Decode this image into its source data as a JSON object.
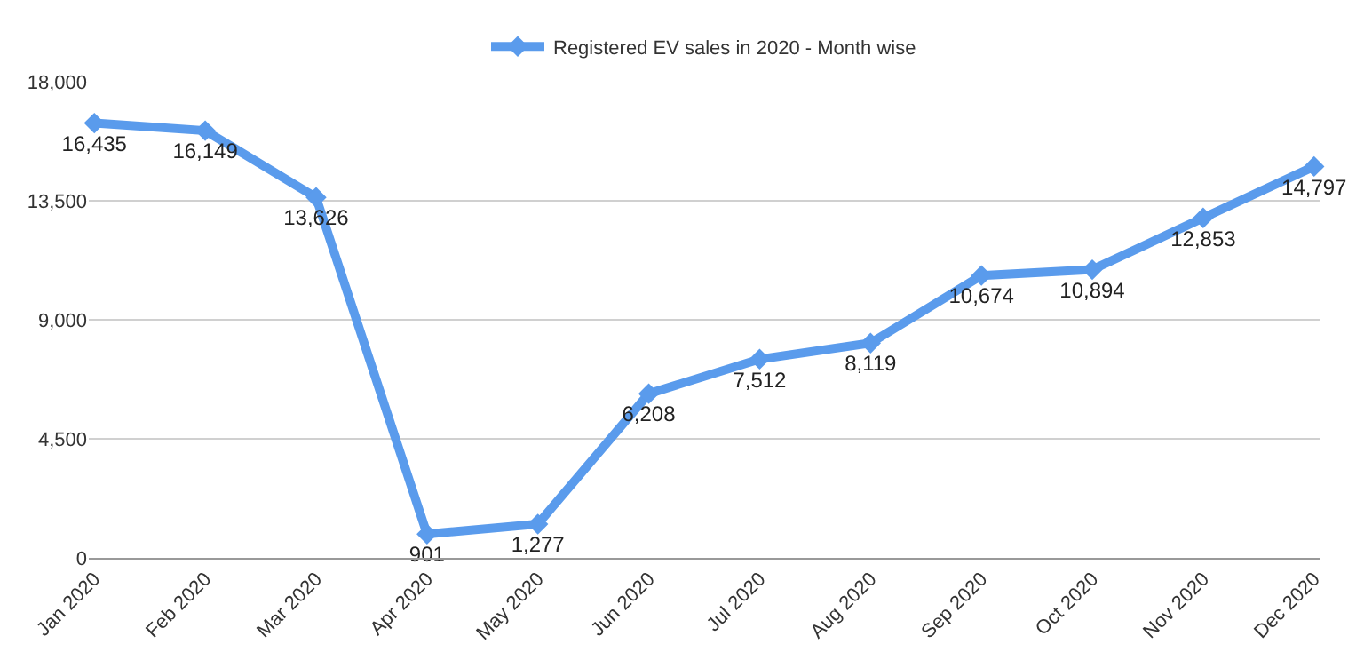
{
  "chart_data": {
    "type": "line",
    "categories": [
      "Jan 2020",
      "Feb 2020",
      "Mar 2020",
      "Apr 2020",
      "May 2020",
      "Jun 2020",
      "Jul 2020",
      "Aug 2020",
      "Sep 2020",
      "Oct 2020",
      "Nov 2020",
      "Dec 2020"
    ],
    "series": [
      {
        "name": "Registered EV sales in 2020 - Month wise",
        "color": "#5a9bec",
        "values": [
          16435,
          16149,
          13626,
          901,
          1277,
          6208,
          7512,
          8119,
          10674,
          10894,
          12853,
          14797
        ],
        "value_labels": [
          "16,435",
          "16,149",
          "13,626",
          "901",
          "1,277",
          "6,208",
          "7,512",
          "8,119",
          "10,674",
          "10,894",
          "12,853",
          "14,797"
        ]
      }
    ],
    "ylim": [
      0,
      18000
    ],
    "yticks": [
      0,
      {
        "value": 4500,
        "label": "4,500"
      },
      {
        "value": 9000,
        "label": "9,000"
      },
      {
        "value": 13500,
        "label": "13,500"
      },
      {
        "value": 18000,
        "label": "18,000"
      }
    ],
    "grid": "y",
    "legend": "top",
    "marker": "diamond",
    "line_style": "solid"
  }
}
